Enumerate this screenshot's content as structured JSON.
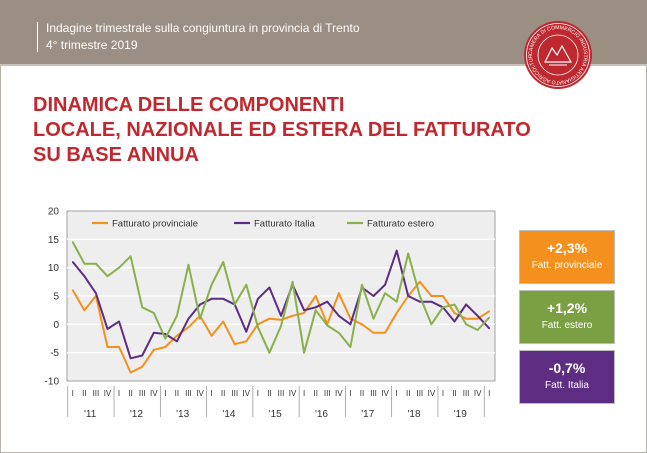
{
  "header": {
    "title": "Indagine trimestrale sulla congiuntura in provincia di Trento",
    "subtitle": "4° trimestre 2019",
    "logo_text": "CAMERA DI COMMERCIO INDUSTRIA ARTIGIANATO AGRICOLTURA TRENTO"
  },
  "title_lines": [
    "DINAMICA DELLE COMPONENTI",
    "LOCALE, NAZIONALE ED ESTERA DEL FATTURATO",
    "SU BASE ANNUA"
  ],
  "colors": {
    "header": "#9b8f84",
    "title": "#c0282f",
    "provinciale": "#f4901e",
    "italia": "#5c2d83",
    "estero": "#8ab04c",
    "estero_box": "#7ba043"
  },
  "chart_data": {
    "type": "line",
    "ylim": [
      -10,
      20
    ],
    "yticks": [
      "20",
      "15",
      "10",
      "5",
      "0",
      "-5",
      "-10"
    ],
    "grid": true,
    "legend_position": "top",
    "quarter_labels": [
      "I",
      "II",
      "III",
      "IV"
    ],
    "years": [
      "'11",
      "'12",
      "'13",
      "'14",
      "'15",
      "'16",
      "'17",
      "'18",
      "'19"
    ],
    "series": [
      {
        "name": "Fatturato provinciale",
        "values": [
          6,
          2.5,
          5,
          -4,
          -4,
          -8.5,
          -7.5,
          -4.5,
          -4,
          -2,
          -0.5,
          1.5,
          -2,
          0.5,
          -3.5,
          -3,
          0,
          1,
          0.8,
          1.5,
          2,
          5,
          0,
          5.5,
          1,
          0,
          -1.5,
          -1.5,
          2,
          5,
          7.5,
          5,
          5,
          2,
          1,
          1,
          2.3
        ]
      },
      {
        "name": "Fatturato Italia",
        "values": [
          11,
          8.5,
          5.5,
          -0.8,
          0.5,
          -6,
          -5.5,
          -1.5,
          -1.7,
          -3,
          1,
          3.5,
          4.5,
          4.5,
          3.5,
          -1.3,
          4.5,
          6.5,
          1.5,
          7,
          2.5,
          3,
          4,
          1.5,
          0,
          6.5,
          5,
          7,
          13,
          5,
          4,
          4,
          3,
          0.5,
          3.5,
          1.5,
          -0.7
        ]
      },
      {
        "name": "Fatturato estero",
        "values": [
          14.5,
          10.7,
          10.7,
          8.5,
          10,
          12,
          3,
          2,
          -2.5,
          1.5,
          10.5,
          1,
          7,
          11,
          3.5,
          7,
          -0.5,
          -5,
          -0.3,
          7.5,
          -5,
          2.5,
          -0.2,
          -1.5,
          -4,
          7,
          1,
          5.5,
          4,
          12.5,
          5,
          0,
          3,
          3.5,
          0,
          -1,
          1.2
        ]
      }
    ]
  },
  "kpis": [
    {
      "value": "+2,3%",
      "label": "Fatt. provinciale",
      "color": "#f4901e"
    },
    {
      "value": "+1,2%",
      "label": "Fatt. estero",
      "color": "#7ba043"
    },
    {
      "value": "-0,7%",
      "label": "Fatt. Italia",
      "color": "#5c2d83"
    }
  ]
}
